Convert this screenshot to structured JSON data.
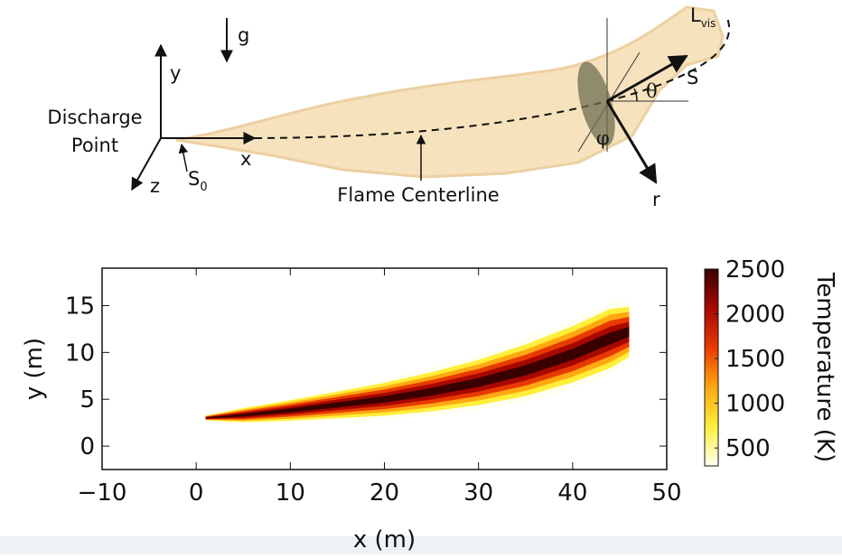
{
  "diagram": {
    "g": "g",
    "y": "y",
    "x": "x",
    "z": "z",
    "discharge": [
      "Discharge",
      "Point"
    ],
    "s0": {
      "text": "S",
      "sub": "0"
    },
    "centerline": "Flame Centerline",
    "lvis": {
      "text": "L",
      "sub": "vis"
    },
    "s": "S",
    "theta": "θ",
    "phi": "φ",
    "r": "r"
  },
  "chart_data": {
    "type": "flame",
    "xlabel": "x (m)",
    "ylabel": "y (m)",
    "xlim": [
      -10,
      50
    ],
    "ylim": [
      -2.5,
      19
    ],
    "xticks": [
      {
        "value": -10,
        "label": "−10"
      },
      0,
      10,
      20,
      30,
      40,
      50
    ],
    "yticks": [
      0,
      5,
      10,
      15
    ],
    "centerline_x": [
      1,
      5,
      10,
      15,
      20,
      25,
      30,
      35,
      40,
      44,
      46
    ],
    "centerline_y": [
      3,
      3.3,
      3.8,
      4.4,
      5.0,
      5.8,
      6.8,
      8.1,
      9.8,
      11.5,
      12.2
    ],
    "half_width": [
      0.3,
      0.9,
      1.3,
      1.7,
      2.1,
      2.5,
      2.9,
      3.3,
      3.6,
      3.8,
      3.2
    ],
    "colorbar": {
      "label": "Temperature (K)",
      "lim": [
        300,
        2500
      ],
      "ticks": [
        500,
        1000,
        1500,
        2000,
        2500
      ]
    },
    "colormap": [
      "#fffff0",
      "#ffef3a",
      "#ffa812",
      "#e83a00",
      "#a80800",
      "#3a0000"
    ]
  }
}
